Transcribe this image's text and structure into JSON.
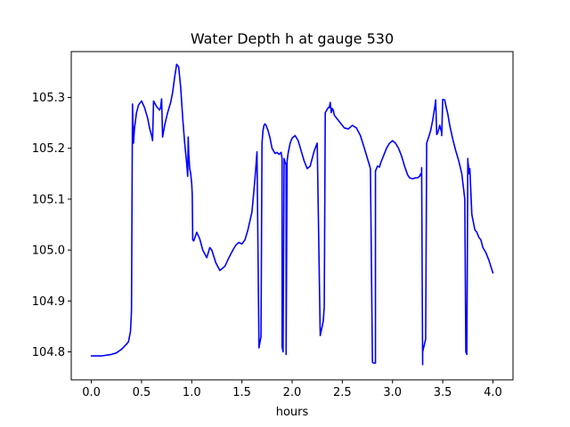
{
  "chart_data": {
    "type": "line",
    "title": "Water Depth h at gauge 530",
    "xlabel": "hours",
    "ylabel": "",
    "xlim": [
      -0.2,
      4.2
    ],
    "ylim": [
      104.745,
      105.39
    ],
    "xticks": [
      0.0,
      0.5,
      1.0,
      1.5,
      2.0,
      2.5,
      3.0,
      3.5,
      4.0
    ],
    "xtick_labels": [
      "0.0",
      "0.5",
      "1.0",
      "1.5",
      "2.0",
      "2.5",
      "3.0",
      "3.5",
      "4.0"
    ],
    "yticks": [
      104.8,
      104.9,
      105.0,
      105.1,
      105.2,
      105.3
    ],
    "ytick_labels": [
      "104.8",
      "104.9",
      "105.0",
      "105.1",
      "105.2",
      "105.3"
    ],
    "grid": false,
    "legend": "none",
    "series": [
      {
        "color": "#0000ff",
        "x": [
          0.0,
          0.1,
          0.2,
          0.25,
          0.3,
          0.35,
          0.37,
          0.39,
          0.4,
          0.41,
          0.42,
          0.43,
          0.45,
          0.47,
          0.5,
          0.53,
          0.56,
          0.58,
          0.6,
          0.61,
          0.62,
          0.65,
          0.68,
          0.69,
          0.7,
          0.71,
          0.73,
          0.76,
          0.79,
          0.81,
          0.83,
          0.85,
          0.87,
          0.89,
          0.91,
          0.93,
          0.95,
          0.96,
          0.965,
          0.97,
          0.98,
          0.99,
          1.0,
          1.005,
          1.01,
          1.02,
          1.05,
          1.08,
          1.11,
          1.15,
          1.18,
          1.2,
          1.24,
          1.28,
          1.33,
          1.37,
          1.41,
          1.44,
          1.47,
          1.5,
          1.53,
          1.56,
          1.6,
          1.63,
          1.65,
          1.67,
          1.69,
          1.7,
          1.71,
          1.72,
          1.73,
          1.74,
          1.76,
          1.78,
          1.8,
          1.83,
          1.85,
          1.87,
          1.89,
          1.9,
          1.9,
          1.91,
          1.92,
          1.93,
          1.94,
          1.94,
          1.95,
          1.96,
          1.97,
          1.98,
          2.0,
          2.03,
          2.06,
          2.09,
          2.12,
          2.15,
          2.18,
          2.2,
          2.22,
          2.25,
          2.28,
          2.31,
          2.32,
          2.33,
          2.36,
          2.37,
          2.38,
          2.39,
          2.4,
          2.41,
          2.42,
          2.44,
          2.48,
          2.52,
          2.56,
          2.6,
          2.64,
          2.68,
          2.72,
          2.75,
          2.78,
          2.8,
          2.81,
          2.83,
          2.83,
          2.85,
          2.87,
          2.88,
          2.9,
          2.92,
          2.94,
          2.97,
          3.0,
          3.03,
          3.06,
          3.09,
          3.12,
          3.15,
          3.17,
          3.2,
          3.23,
          3.25,
          3.27,
          3.28,
          3.29,
          3.29,
          3.3,
          3.3,
          3.33,
          3.34,
          3.34,
          3.36,
          3.38,
          3.4,
          3.42,
          3.43,
          3.44,
          3.45,
          3.47,
          3.49,
          3.49,
          3.5,
          3.52,
          3.53,
          3.55,
          3.57,
          3.6,
          3.63,
          3.66,
          3.69,
          3.72,
          3.73,
          3.74,
          3.75,
          3.75,
          3.76,
          3.76,
          3.77,
          3.79,
          3.8,
          3.81,
          3.82,
          3.84,
          3.86,
          3.88,
          3.9,
          3.93,
          3.96,
          4.0
        ],
        "y": [
          104.792,
          104.792,
          104.795,
          104.798,
          104.805,
          104.815,
          104.82,
          104.84,
          104.88,
          105.287,
          105.21,
          105.24,
          105.27,
          105.285,
          105.293,
          105.28,
          105.26,
          105.24,
          105.225,
          105.215,
          105.293,
          105.282,
          105.275,
          105.28,
          105.297,
          105.222,
          105.245,
          105.27,
          105.29,
          105.31,
          105.34,
          105.365,
          105.36,
          105.32,
          105.26,
          105.21,
          105.17,
          105.145,
          105.222,
          105.19,
          105.16,
          105.15,
          105.13,
          105.11,
          105.02,
          105.018,
          105.035,
          105.022,
          105.0,
          104.985,
          105.005,
          105.0,
          104.975,
          104.96,
          104.968,
          104.985,
          105.0,
          105.01,
          105.015,
          105.012,
          105.02,
          105.04,
          105.075,
          105.14,
          105.193,
          104.808,
          104.83,
          105.21,
          105.235,
          105.245,
          105.248,
          105.245,
          105.235,
          105.22,
          105.2,
          105.19,
          105.192,
          105.188,
          105.192,
          105.18,
          104.81,
          104.8,
          105.18,
          105.172,
          105.168,
          104.795,
          105.175,
          105.19,
          105.2,
          105.21,
          105.22,
          105.225,
          105.215,
          105.195,
          105.175,
          105.16,
          105.165,
          105.18,
          105.195,
          105.21,
          104.832,
          104.86,
          104.888,
          105.27,
          105.28,
          105.28,
          105.29,
          105.27,
          105.278,
          105.275,
          105.265,
          105.26,
          105.25,
          105.24,
          105.238,
          105.245,
          105.24,
          105.225,
          105.2,
          105.18,
          105.16,
          104.78,
          104.778,
          104.778,
          105.155,
          105.165,
          105.163,
          105.17,
          105.18,
          105.19,
          105.2,
          105.21,
          105.215,
          105.21,
          105.2,
          105.185,
          105.165,
          105.148,
          105.142,
          105.14,
          105.142,
          105.142,
          105.145,
          105.15,
          105.145,
          105.162,
          104.775,
          104.8,
          104.825,
          105.2,
          105.21,
          105.222,
          105.235,
          105.255,
          105.28,
          105.295,
          105.227,
          105.23,
          105.245,
          105.23,
          105.225,
          105.296,
          105.295,
          105.285,
          105.268,
          105.245,
          105.218,
          105.195,
          105.175,
          105.15,
          105.1,
          104.8,
          104.795,
          105.18,
          105.175,
          105.16,
          105.15,
          105.16,
          105.07,
          105.06,
          105.05,
          105.04,
          105.035,
          105.025,
          105.02,
          105.005,
          104.995,
          104.98,
          104.955
        ]
      }
    ]
  }
}
